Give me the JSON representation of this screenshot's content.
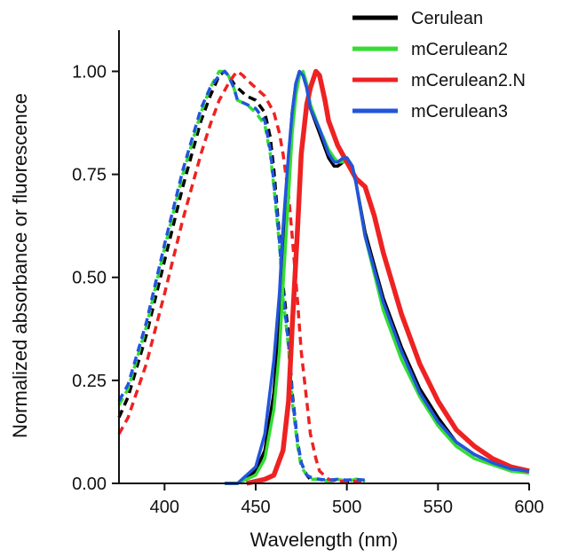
{
  "chart_data": {
    "type": "line",
    "xlabel": "Wavelength (nm)",
    "ylabel": "Normalized absorbance or fluorescence",
    "xlim": [
      375,
      600
    ],
    "ylim": [
      0,
      1.1
    ],
    "x_ticks": [
      400,
      450,
      500,
      550,
      600
    ],
    "y_ticks": [
      0.0,
      0.25,
      0.5,
      0.75,
      1.0
    ],
    "x_tick_labels": [
      "400",
      "450",
      "500",
      "550",
      "600"
    ],
    "y_tick_labels": [
      "0.00",
      "0.25",
      "0.50",
      "0.75",
      "1.00"
    ],
    "grid": false,
    "legend_position": "top-right",
    "series": [
      {
        "name": "Cerulean",
        "color": "#000000",
        "absorbance": {
          "x": [
            375,
            380,
            390,
            400,
            410,
            420,
            425,
            430,
            433,
            435,
            438,
            440,
            445,
            450,
            455,
            458,
            460,
            463,
            465,
            468,
            470,
            473,
            475,
            478,
            480,
            485,
            490,
            495,
            500,
            505,
            510
          ],
          "y": [
            0.16,
            0.21,
            0.36,
            0.54,
            0.72,
            0.88,
            0.94,
            0.99,
            1.0,
            0.99,
            0.97,
            0.96,
            0.94,
            0.93,
            0.9,
            0.84,
            0.76,
            0.6,
            0.48,
            0.36,
            0.22,
            0.1,
            0.05,
            0.02,
            0.01,
            0.01,
            0.005,
            0.01,
            0.005,
            0.01,
            0.005
          ]
        },
        "emission": {
          "x": [
            433,
            440,
            450,
            455,
            460,
            463,
            465,
            468,
            470,
            472,
            474,
            476,
            478,
            480,
            485,
            490,
            493,
            495,
            498,
            500,
            503,
            505,
            510,
            520,
            530,
            540,
            550,
            560,
            570,
            580,
            590,
            600
          ],
          "y": [
            0.0,
            0.0,
            0.03,
            0.08,
            0.22,
            0.38,
            0.56,
            0.78,
            0.9,
            0.97,
            1.0,
            0.99,
            0.96,
            0.91,
            0.85,
            0.79,
            0.77,
            0.77,
            0.78,
            0.79,
            0.77,
            0.73,
            0.61,
            0.45,
            0.33,
            0.23,
            0.16,
            0.1,
            0.07,
            0.05,
            0.035,
            0.03
          ]
        }
      },
      {
        "name": "mCerulean2",
        "color": "#33dd33",
        "absorbance": {
          "x": [
            375,
            380,
            390,
            400,
            410,
            420,
            425,
            430,
            433,
            435,
            438,
            440,
            445,
            450,
            455,
            458,
            460,
            463,
            465,
            468,
            470,
            473,
            475,
            478,
            480,
            485,
            490,
            495,
            500,
            505,
            510
          ],
          "y": [
            0.19,
            0.23,
            0.38,
            0.57,
            0.75,
            0.9,
            0.96,
            1.0,
            1.0,
            0.99,
            0.96,
            0.93,
            0.92,
            0.9,
            0.87,
            0.8,
            0.72,
            0.58,
            0.45,
            0.33,
            0.2,
            0.09,
            0.04,
            0.02,
            0.01,
            0.01,
            0.005,
            0.01,
            0.005,
            0.01,
            0.005
          ]
        },
        "emission": {
          "x": [
            433,
            440,
            450,
            455,
            460,
            463,
            465,
            468,
            470,
            472,
            474,
            476,
            478,
            480,
            485,
            490,
            493,
            495,
            498,
            500,
            503,
            505,
            510,
            520,
            530,
            540,
            550,
            560,
            570,
            580,
            590,
            600
          ],
          "y": [
            0.0,
            0.0,
            0.02,
            0.06,
            0.18,
            0.32,
            0.48,
            0.7,
            0.85,
            0.94,
            0.99,
            1.0,
            0.97,
            0.92,
            0.86,
            0.81,
            0.79,
            0.78,
            0.78,
            0.79,
            0.77,
            0.73,
            0.6,
            0.42,
            0.3,
            0.21,
            0.14,
            0.09,
            0.06,
            0.045,
            0.03,
            0.025
          ]
        }
      },
      {
        "name": "mCerulean2.N",
        "color": "#ee2222",
        "absorbance": {
          "x": [
            375,
            380,
            390,
            400,
            410,
            420,
            425,
            430,
            435,
            438,
            440,
            443,
            445,
            450,
            455,
            460,
            463,
            465,
            468,
            470,
            473,
            475,
            478,
            480,
            483,
            485,
            490,
            495,
            500,
            505,
            510
          ],
          "y": [
            0.12,
            0.16,
            0.29,
            0.46,
            0.64,
            0.8,
            0.87,
            0.93,
            0.97,
            0.99,
            1.0,
            0.99,
            0.98,
            0.96,
            0.94,
            0.9,
            0.85,
            0.8,
            0.7,
            0.6,
            0.44,
            0.32,
            0.2,
            0.12,
            0.06,
            0.03,
            0.01,
            0.005,
            0.005,
            0.005,
            0.005
          ]
        },
        "emission": {
          "x": [
            445,
            450,
            455,
            460,
            465,
            468,
            470,
            473,
            475,
            478,
            480,
            483,
            485,
            488,
            490,
            495,
            500,
            505,
            510,
            515,
            520,
            530,
            540,
            550,
            560,
            570,
            580,
            590,
            600
          ],
          "y": [
            0.0,
            0.005,
            0.01,
            0.02,
            0.08,
            0.2,
            0.38,
            0.62,
            0.8,
            0.92,
            0.96,
            1.0,
            0.99,
            0.93,
            0.88,
            0.82,
            0.78,
            0.74,
            0.72,
            0.65,
            0.56,
            0.41,
            0.29,
            0.2,
            0.13,
            0.09,
            0.06,
            0.04,
            0.03
          ]
        }
      },
      {
        "name": "mCerulean3",
        "color": "#2255dd",
        "absorbance": {
          "x": [
            375,
            380,
            390,
            400,
            410,
            420,
            425,
            430,
            433,
            435,
            438,
            440,
            445,
            450,
            455,
            458,
            460,
            463,
            465,
            468,
            470,
            473,
            475,
            478,
            480,
            485,
            490,
            495,
            500,
            505,
            510
          ],
          "y": [
            0.2,
            0.24,
            0.39,
            0.58,
            0.76,
            0.91,
            0.96,
            0.99,
            1.0,
            0.99,
            0.96,
            0.93,
            0.92,
            0.91,
            0.88,
            0.81,
            0.73,
            0.59,
            0.46,
            0.34,
            0.21,
            0.1,
            0.05,
            0.02,
            0.015,
            0.01,
            0.008,
            0.01,
            0.008,
            0.01,
            0.008
          ]
        },
        "emission": {
          "x": [
            433,
            440,
            450,
            455,
            460,
            463,
            465,
            468,
            470,
            472,
            474,
            476,
            478,
            480,
            485,
            490,
            493,
            495,
            498,
            500,
            503,
            505,
            510,
            520,
            530,
            540,
            550,
            560,
            570,
            580,
            590,
            600
          ],
          "y": [
            0.0,
            0.0,
            0.04,
            0.12,
            0.3,
            0.46,
            0.62,
            0.8,
            0.9,
            0.97,
            1.0,
            0.99,
            0.96,
            0.91,
            0.86,
            0.8,
            0.78,
            0.78,
            0.79,
            0.79,
            0.77,
            0.73,
            0.6,
            0.44,
            0.32,
            0.22,
            0.15,
            0.1,
            0.07,
            0.05,
            0.035,
            0.03
          ]
        }
      }
    ]
  }
}
